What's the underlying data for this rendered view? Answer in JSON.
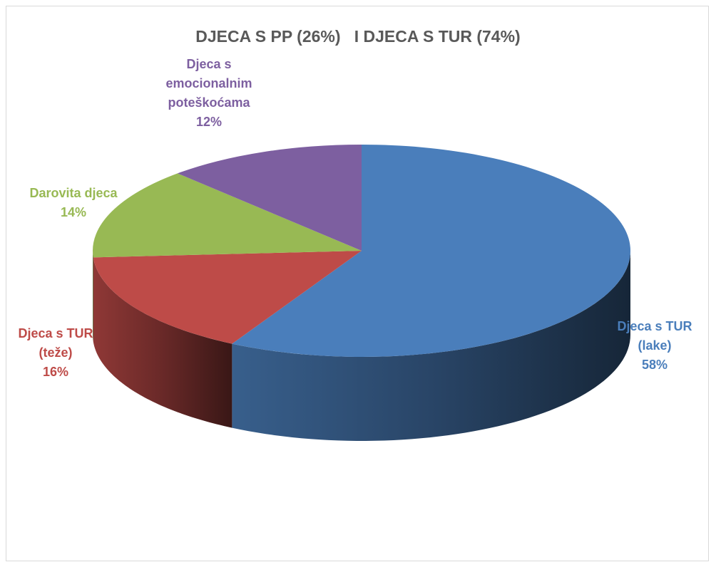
{
  "chart_data": {
    "type": "pie",
    "title": "DJECA S PP (26%)   I DJECA S TUR (74%)",
    "categories": [
      "Djeca s TUR (lake)",
      "Djeca s TUR (teže)",
      "Darovita djeca",
      "Djeca s emocionalnim poteškoćama"
    ],
    "values": [
      58,
      16,
      14,
      12
    ],
    "value_labels": [
      "58%",
      "16%",
      "14%",
      "12%"
    ],
    "colors": [
      "#4a7ebb",
      "#be4b48",
      "#98b954",
      "#7d5fa0"
    ]
  }
}
